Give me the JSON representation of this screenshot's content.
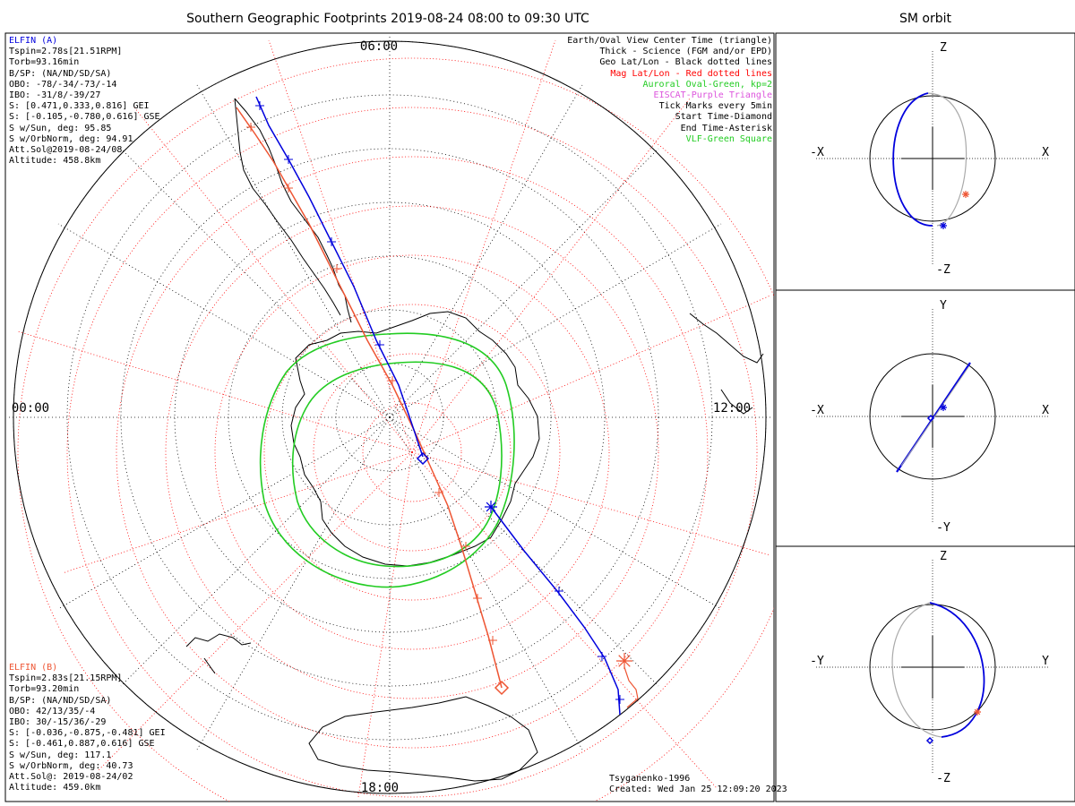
{
  "title": "Southern Geographic Footprints 2019-08-24 08:00 to 09:30 UTC",
  "sm_title": "SM orbit",
  "map_labels": {
    "top": "06:00",
    "left": "00:00",
    "right": "12:00",
    "bottom": "18:00"
  },
  "elfin_a": {
    "name": "ELFIN (A)",
    "lines": [
      "Tspin=2.78s[21.51RPM]",
      "Torb=93.16min",
      "B/SP: (NA/ND/SD/SA)",
      "OBO: -78/-34/-73/-14",
      "IBO: -31/8/-39/27",
      "S: [0.471,0.333,0.816] GEI",
      "S: [-0.105,-0.780,0.616] GSE",
      "S w/Sun, deg: 95.85",
      "S w/OrbNorm, deg: 94.91",
      "Att.Sol@2019-08-24/08",
      "Altitude: 458.8km"
    ]
  },
  "elfin_b": {
    "name": "ELFIN (B)",
    "lines": [
      "Tspin=2.83s[21.15RPM]",
      "Torb=93.20min",
      "B/SP: (NA/ND/SD/SA)",
      "OBO: 42/13/35/-4",
      "IBO: 30/-15/36/-29",
      "S: [-0.036,-0.875,-0.481] GEI",
      "S: [-0.461,0.887,0.616] GSE",
      "S w/Sun, deg: 117.1",
      "S w/OrbNorm, deg: 40.73",
      "Att.Sol@: 2019-08-24/02",
      "Altitude: 459.0km"
    ]
  },
  "legend": [
    {
      "text": "Earth/Oval View Center Time (triangle)",
      "color": "#000000"
    },
    {
      "text": "Thick - Science (FGM and/or EPD)",
      "color": "#000000"
    },
    {
      "text": "Geo Lat/Lon - Black dotted lines",
      "color": "#000000"
    },
    {
      "text": "Mag Lat/Lon - Red dotted lines",
      "color": "#ff0000"
    },
    {
      "text": "Auroral Oval-Green, kp=2",
      "color": "#22cc22"
    },
    {
      "text": "EISCAT-Purple Triangle",
      "color": "#dd55dd"
    },
    {
      "text": "Tick Marks every 5min",
      "color": "#000000"
    },
    {
      "text": "Start Time-Diamond",
      "color": "#000000"
    },
    {
      "text": "End Time-Asterisk",
      "color": "#000000"
    },
    {
      "text": "VLF-Green Square",
      "color": "#22cc22"
    }
  ],
  "credits": {
    "model": "Tsyganenko-1996",
    "created": "Created: Wed Jan 25 12:09:20 2023"
  },
  "sm_panels": [
    {
      "top": "Z",
      "bottom": "-Z",
      "left": "-X",
      "right": "X"
    },
    {
      "top": "Y",
      "bottom": "-Y",
      "left": "-X",
      "right": "X"
    },
    {
      "top": "Z",
      "bottom": "-Z",
      "left": "-Y",
      "right": "Y"
    }
  ],
  "colors": {
    "elfin_a": "#0000dd",
    "elfin_b": "#ee5533",
    "oval": "#22cc22",
    "mag_grid": "#ff0000",
    "geo_grid": "#000000"
  }
}
